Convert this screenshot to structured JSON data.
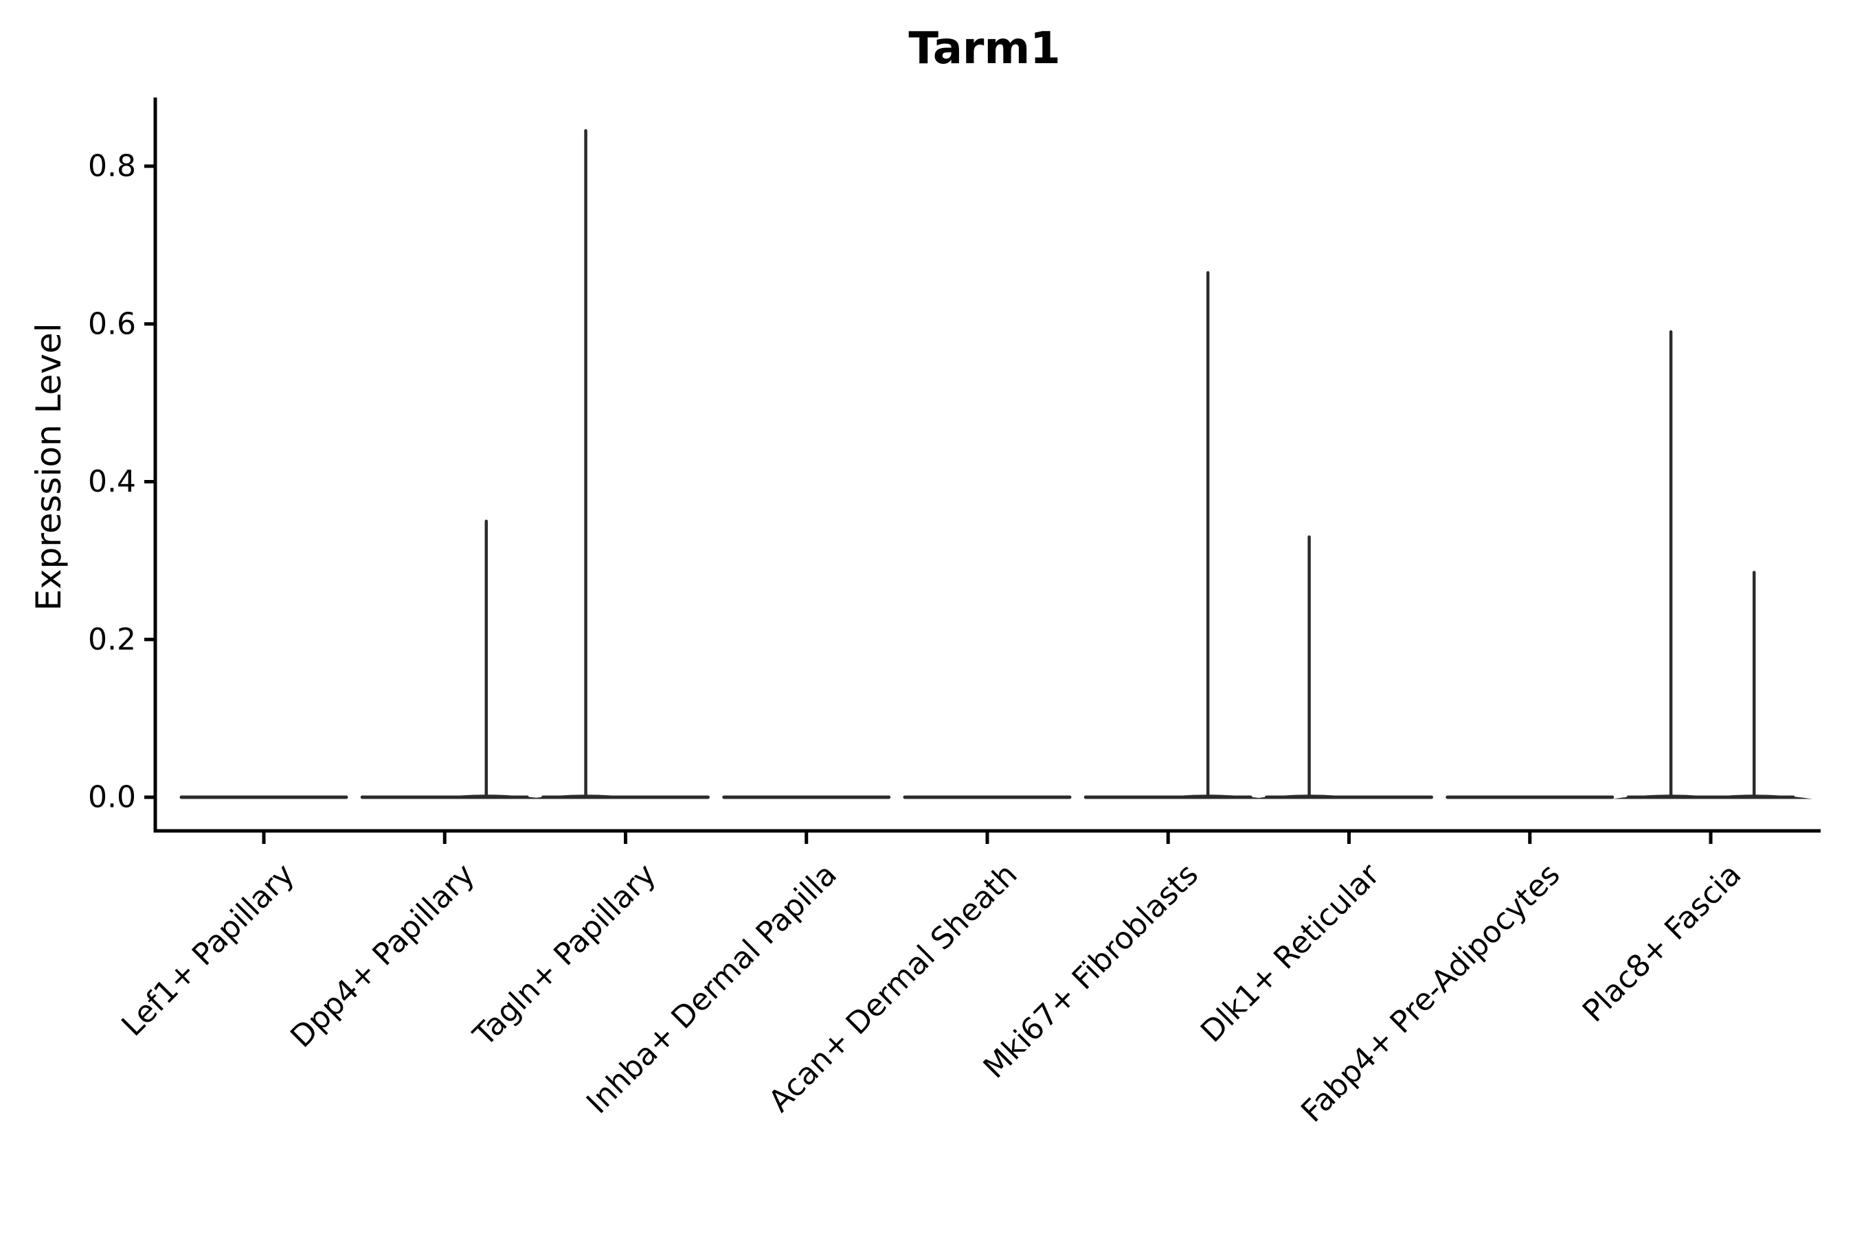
{
  "title": "Tarm1",
  "ylabel": "Expression Level",
  "chart_data": {
    "type": "violin",
    "title": "Tarm1",
    "xlabel": "",
    "ylabel": "Expression Level",
    "ylim": [
      0,
      0.89
    ],
    "grid": false,
    "legend": "none",
    "yticks": [
      0.0,
      0.2,
      0.4,
      0.6,
      0.8
    ],
    "ytick_labels": [
      "0.0",
      "0.2",
      "0.4",
      "0.6",
      "0.8"
    ],
    "categories": [
      "Lef1+ Papillary",
      "Dpp4+ Papillary",
      "Tagln+ Papillary",
      "Inhba+ Dermal Papilla",
      "Acan+ Dermal Sheath",
      "Mki67+ Fibroblasts",
      "Dlk1+ Reticular",
      "Fabp4+ Pre-Adipocytes",
      "Plac8+ Fascia"
    ],
    "series": [
      {
        "name": "Lef1+ Papillary",
        "baseline_value": 0.0,
        "spikes": []
      },
      {
        "name": "Dpp4+ Papillary",
        "baseline_value": 0.0,
        "spikes": [
          {
            "offset_frac": 0.23,
            "value": 0.35
          }
        ]
      },
      {
        "name": "Tagln+ Papillary",
        "baseline_value": 0.0,
        "spikes": [
          {
            "offset_frac": -0.22,
            "value": 0.845
          }
        ]
      },
      {
        "name": "Inhba+ Dermal Papilla",
        "baseline_value": 0.0,
        "spikes": []
      },
      {
        "name": "Acan+ Dermal Sheath",
        "baseline_value": 0.0,
        "spikes": []
      },
      {
        "name": "Mki67+ Fibroblasts",
        "baseline_value": 0.0,
        "spikes": [
          {
            "offset_frac": 0.22,
            "value": 0.665
          }
        ]
      },
      {
        "name": "Dlk1+ Reticular",
        "baseline_value": 0.0,
        "spikes": [
          {
            "offset_frac": -0.22,
            "value": 0.33
          }
        ]
      },
      {
        "name": "Fabp4+ Pre-Adipocytes",
        "baseline_value": 0.0,
        "spikes": []
      },
      {
        "name": "Plac8+ Fascia",
        "baseline_value": 0.0,
        "spikes": [
          {
            "offset_frac": -0.22,
            "value": 0.59
          },
          {
            "offset_frac": 0.24,
            "value": 0.285
          }
        ]
      }
    ],
    "colors": {
      "axis": "#000000",
      "violin_stroke": "#2b2b2b",
      "background": "#ffffff"
    }
  }
}
